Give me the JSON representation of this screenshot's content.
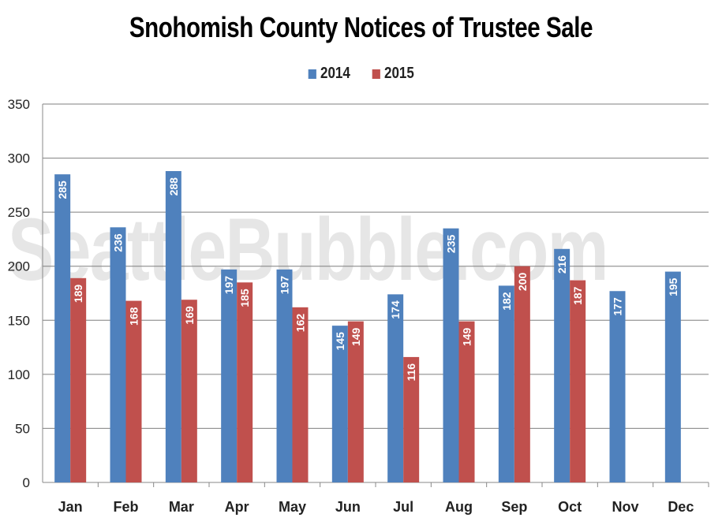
{
  "chart_data": {
    "type": "bar",
    "title": "Snohomish County Notices of Trustee Sale",
    "categories": [
      "Jan",
      "Feb",
      "Mar",
      "Apr",
      "May",
      "Jun",
      "Jul",
      "Aug",
      "Sep",
      "Oct",
      "Nov",
      "Dec"
    ],
    "series": [
      {
        "name": "2014",
        "color": "#4f81bd",
        "values": [
          285,
          236,
          288,
          197,
          197,
          145,
          174,
          235,
          182,
          216,
          177,
          195
        ]
      },
      {
        "name": "2015",
        "color": "#c0504d",
        "values": [
          189,
          168,
          169,
          185,
          162,
          149,
          116,
          149,
          200,
          187,
          null,
          null
        ]
      }
    ],
    "ylim": [
      0,
      350
    ],
    "yticks": [
      0,
      50,
      100,
      150,
      200,
      250,
      300,
      350
    ],
    "xlabel": "",
    "ylabel": "",
    "grid": true,
    "legend": "top-center",
    "data_labels": true,
    "watermark": "SeattleBubble.com"
  }
}
